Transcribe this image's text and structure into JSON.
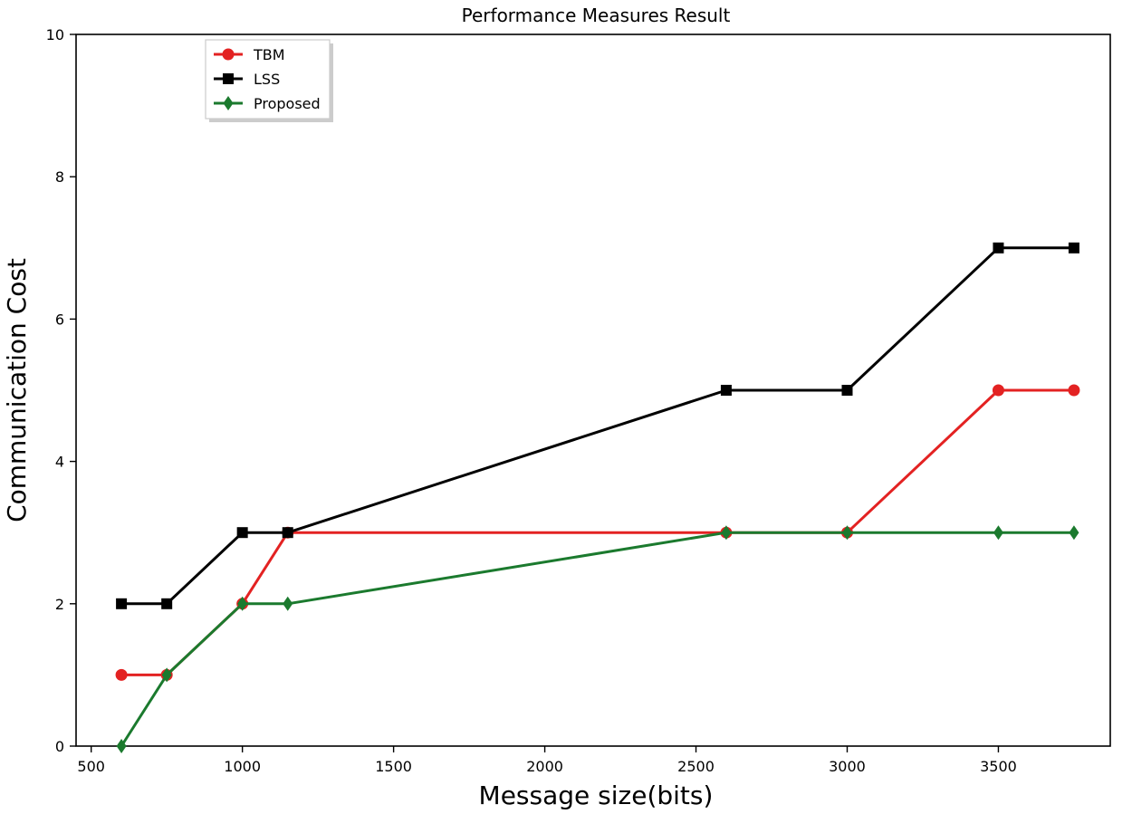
{
  "chart_data": {
    "type": "line",
    "title": "Performance Measures Result",
    "xlabel": "Message size(bits)",
    "ylabel": "Communication Cost",
    "xlim": [
      450,
      3870
    ],
    "ylim": [
      0,
      10
    ],
    "xticks": [
      500,
      1000,
      1500,
      2000,
      2500,
      3000,
      3500
    ],
    "yticks": [
      0,
      2,
      4,
      6,
      8,
      10
    ],
    "grid": false,
    "legend_position": "upper-left",
    "x": [
      600,
      750,
      1000,
      1150,
      2600,
      3000,
      3500,
      3750
    ],
    "series": [
      {
        "name": "TBM",
        "color": "#e32222",
        "marker": "circle",
        "values": [
          1,
          1,
          2,
          3,
          3,
          3,
          5,
          5
        ]
      },
      {
        "name": "LSS",
        "color": "#000000",
        "marker": "square",
        "values": [
          2,
          2,
          3,
          3,
          5,
          5,
          7,
          7
        ]
      },
      {
        "name": "Proposed",
        "color": "#1b7a2e",
        "marker": "diamond",
        "values": [
          0,
          1,
          2,
          2,
          3,
          3,
          3,
          3
        ]
      }
    ]
  }
}
